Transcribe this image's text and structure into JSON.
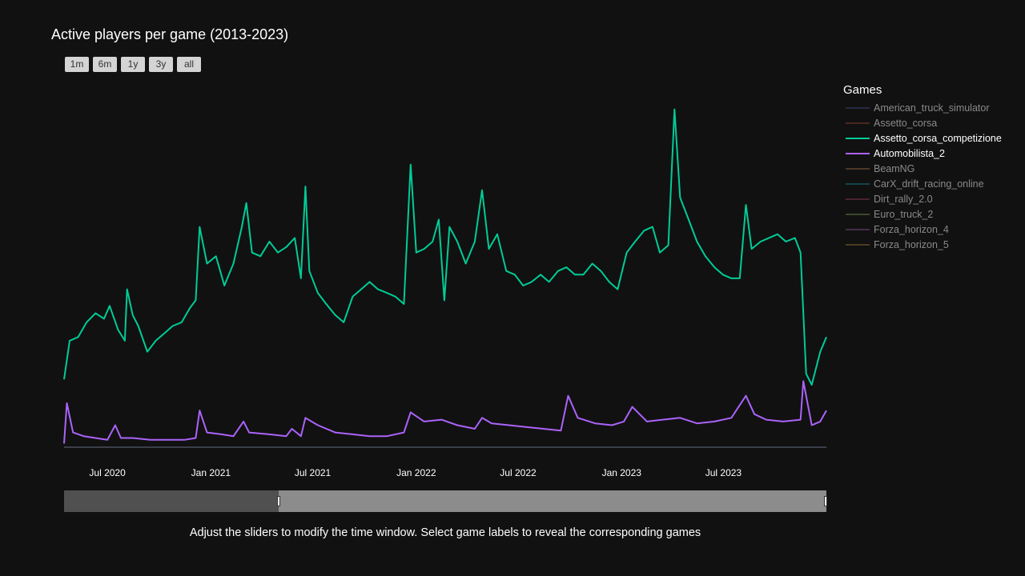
{
  "title": "Active players per game (2013-2023)",
  "range_buttons": [
    "1m",
    "6m",
    "1y",
    "3y",
    "all"
  ],
  "legend": {
    "title": "Games",
    "items": [
      {
        "label": "American_truck_simulator",
        "color": "#3b3f6e",
        "active": false
      },
      {
        "label": "Assetto_corsa",
        "color": "#7a3a30",
        "active": false
      },
      {
        "label": "Assetto_corsa_competizione",
        "color": "#00cc96",
        "active": true
      },
      {
        "label": "Automobilista_2",
        "color": "#ab63fa",
        "active": true
      },
      {
        "label": "BeamNG",
        "color": "#7f5a3a",
        "active": false
      },
      {
        "label": "CarX_drift_racing_online",
        "color": "#15707a",
        "active": false
      },
      {
        "label": "Dirt_rally_2.0",
        "color": "#7a3348",
        "active": false
      },
      {
        "label": "Euro_truck_2",
        "color": "#5c7a40",
        "active": false
      },
      {
        "label": "Forza_horizon_4",
        "color": "#6e4476",
        "active": false
      },
      {
        "label": "Forza_horizon_5",
        "color": "#7f6230",
        "active": false
      }
    ]
  },
  "caption": "Adjust the sliders to modify the time window. Select game labels to reveal the corresponding games",
  "chart_data": {
    "type": "line",
    "title": "Active players per game (2013-2023)",
    "xlabel": "",
    "ylabel": "",
    "x_range": [
      "2020-04-15",
      "2023-12-31"
    ],
    "x_tick_labels": [
      "Jul 2020",
      "Jan 2021",
      "Jul 2021",
      "Jan 2022",
      "Jul 2022",
      "Jan 2023",
      "Jul 2023"
    ],
    "x_tick_dates": [
      "2020-07-01",
      "2021-01-01",
      "2021-07-01",
      "2022-01-01",
      "2022-07-01",
      "2023-01-01",
      "2023-07-01"
    ],
    "y_range": [
      0,
      1000
    ],
    "grid": false,
    "legend_position": "right",
    "series": [
      {
        "name": "Assetto_corsa_competizione",
        "color": "#00cc96",
        "points": [
          [
            "2020-04-15",
            185
          ],
          [
            "2020-04-25",
            290
          ],
          [
            "2020-05-10",
            300
          ],
          [
            "2020-05-25",
            340
          ],
          [
            "2020-06-10",
            365
          ],
          [
            "2020-06-25",
            350
          ],
          [
            "2020-07-05",
            385
          ],
          [
            "2020-07-20",
            320
          ],
          [
            "2020-08-01",
            290
          ],
          [
            "2020-08-05",
            430
          ],
          [
            "2020-08-15",
            360
          ],
          [
            "2020-08-25",
            330
          ],
          [
            "2020-09-10",
            260
          ],
          [
            "2020-09-25",
            290
          ],
          [
            "2020-10-10",
            310
          ],
          [
            "2020-10-25",
            330
          ],
          [
            "2020-11-10",
            340
          ],
          [
            "2020-11-25",
            380
          ],
          [
            "2020-12-05",
            400
          ],
          [
            "2020-12-12",
            600
          ],
          [
            "2020-12-25",
            500
          ],
          [
            "2021-01-10",
            520
          ],
          [
            "2021-01-25",
            440
          ],
          [
            "2021-02-10",
            500
          ],
          [
            "2021-02-25",
            600
          ],
          [
            "2021-03-05",
            665
          ],
          [
            "2021-03-15",
            530
          ],
          [
            "2021-03-30",
            520
          ],
          [
            "2021-04-15",
            560
          ],
          [
            "2021-04-30",
            530
          ],
          [
            "2021-05-15",
            545
          ],
          [
            "2021-05-30",
            570
          ],
          [
            "2021-06-10",
            460
          ],
          [
            "2021-06-18",
            710
          ],
          [
            "2021-06-25",
            480
          ],
          [
            "2021-07-10",
            420
          ],
          [
            "2021-07-25",
            390
          ],
          [
            "2021-08-10",
            360
          ],
          [
            "2021-08-25",
            340
          ],
          [
            "2021-09-10",
            410
          ],
          [
            "2021-09-25",
            430
          ],
          [
            "2021-10-10",
            450
          ],
          [
            "2021-10-25",
            430
          ],
          [
            "2021-11-10",
            420
          ],
          [
            "2021-11-25",
            410
          ],
          [
            "2021-12-10",
            390
          ],
          [
            "2021-12-22",
            770
          ],
          [
            "2022-01-01",
            530
          ],
          [
            "2022-01-15",
            540
          ],
          [
            "2022-01-30",
            560
          ],
          [
            "2022-02-10",
            620
          ],
          [
            "2022-02-20",
            400
          ],
          [
            "2022-03-01",
            600
          ],
          [
            "2022-03-15",
            560
          ],
          [
            "2022-03-30",
            500
          ],
          [
            "2022-04-15",
            560
          ],
          [
            "2022-04-28",
            700
          ],
          [
            "2022-05-10",
            540
          ],
          [
            "2022-05-25",
            580
          ],
          [
            "2022-06-10",
            480
          ],
          [
            "2022-06-25",
            470
          ],
          [
            "2022-07-10",
            440
          ],
          [
            "2022-07-25",
            450
          ],
          [
            "2022-08-10",
            470
          ],
          [
            "2022-08-25",
            450
          ],
          [
            "2022-09-10",
            480
          ],
          [
            "2022-09-25",
            490
          ],
          [
            "2022-10-10",
            470
          ],
          [
            "2022-10-25",
            470
          ],
          [
            "2022-11-10",
            500
          ],
          [
            "2022-11-25",
            480
          ],
          [
            "2022-12-10",
            450
          ],
          [
            "2022-12-25",
            430
          ],
          [
            "2023-01-10",
            530
          ],
          [
            "2023-01-25",
            560
          ],
          [
            "2023-02-10",
            590
          ],
          [
            "2023-02-25",
            600
          ],
          [
            "2023-03-10",
            530
          ],
          [
            "2023-03-25",
            550
          ],
          [
            "2023-04-05",
            920
          ],
          [
            "2023-04-15",
            680
          ],
          [
            "2023-04-30",
            620
          ],
          [
            "2023-05-15",
            560
          ],
          [
            "2023-05-30",
            520
          ],
          [
            "2023-06-15",
            490
          ],
          [
            "2023-06-30",
            470
          ],
          [
            "2023-07-15",
            460
          ],
          [
            "2023-07-30",
            460
          ],
          [
            "2023-08-10",
            660
          ],
          [
            "2023-08-20",
            540
          ],
          [
            "2023-09-05",
            560
          ],
          [
            "2023-09-20",
            570
          ],
          [
            "2023-10-05",
            580
          ],
          [
            "2023-10-20",
            560
          ],
          [
            "2023-11-05",
            570
          ],
          [
            "2023-11-15",
            530
          ],
          [
            "2023-11-25",
            200
          ],
          [
            "2023-12-05",
            170
          ],
          [
            "2023-12-20",
            260
          ],
          [
            "2023-12-31",
            300
          ]
        ]
      },
      {
        "name": "Automobilista_2",
        "color": "#ab63fa",
        "points": [
          [
            "2020-04-15",
            10
          ],
          [
            "2020-04-20",
            120
          ],
          [
            "2020-05-01",
            40
          ],
          [
            "2020-05-20",
            30
          ],
          [
            "2020-06-10",
            25
          ],
          [
            "2020-07-01",
            20
          ],
          [
            "2020-07-15",
            60
          ],
          [
            "2020-07-25",
            25
          ],
          [
            "2020-08-15",
            25
          ],
          [
            "2020-09-15",
            20
          ],
          [
            "2020-10-15",
            20
          ],
          [
            "2020-11-15",
            20
          ],
          [
            "2020-12-05",
            25
          ],
          [
            "2020-12-12",
            100
          ],
          [
            "2020-12-25",
            40
          ],
          [
            "2021-01-20",
            35
          ],
          [
            "2021-02-10",
            30
          ],
          [
            "2021-02-28",
            70
          ],
          [
            "2021-03-10",
            40
          ],
          [
            "2021-04-15",
            35
          ],
          [
            "2021-05-15",
            30
          ],
          [
            "2021-05-25",
            50
          ],
          [
            "2021-06-10",
            30
          ],
          [
            "2021-06-18",
            80
          ],
          [
            "2021-07-10",
            60
          ],
          [
            "2021-08-10",
            40
          ],
          [
            "2021-09-10",
            35
          ],
          [
            "2021-10-10",
            30
          ],
          [
            "2021-11-10",
            30
          ],
          [
            "2021-12-10",
            40
          ],
          [
            "2021-12-22",
            95
          ],
          [
            "2022-01-15",
            70
          ],
          [
            "2022-02-15",
            75
          ],
          [
            "2022-03-15",
            60
          ],
          [
            "2022-04-15",
            50
          ],
          [
            "2022-04-28",
            80
          ],
          [
            "2022-05-15",
            65
          ],
          [
            "2022-06-15",
            60
          ],
          [
            "2022-07-15",
            55
          ],
          [
            "2022-08-15",
            50
          ],
          [
            "2022-09-15",
            45
          ],
          [
            "2022-09-28",
            140
          ],
          [
            "2022-10-15",
            80
          ],
          [
            "2022-11-15",
            65
          ],
          [
            "2022-12-15",
            60
          ],
          [
            "2023-01-05",
            70
          ],
          [
            "2023-01-20",
            110
          ],
          [
            "2023-02-15",
            70
          ],
          [
            "2023-03-15",
            75
          ],
          [
            "2023-04-15",
            80
          ],
          [
            "2023-05-15",
            65
          ],
          [
            "2023-06-15",
            70
          ],
          [
            "2023-07-15",
            80
          ],
          [
            "2023-08-10",
            140
          ],
          [
            "2023-08-25",
            90
          ],
          [
            "2023-09-15",
            75
          ],
          [
            "2023-10-15",
            70
          ],
          [
            "2023-11-15",
            75
          ],
          [
            "2023-11-20",
            180
          ],
          [
            "2023-12-05",
            60
          ],
          [
            "2023-12-20",
            70
          ],
          [
            "2023-12-31",
            100
          ]
        ]
      }
    ]
  }
}
